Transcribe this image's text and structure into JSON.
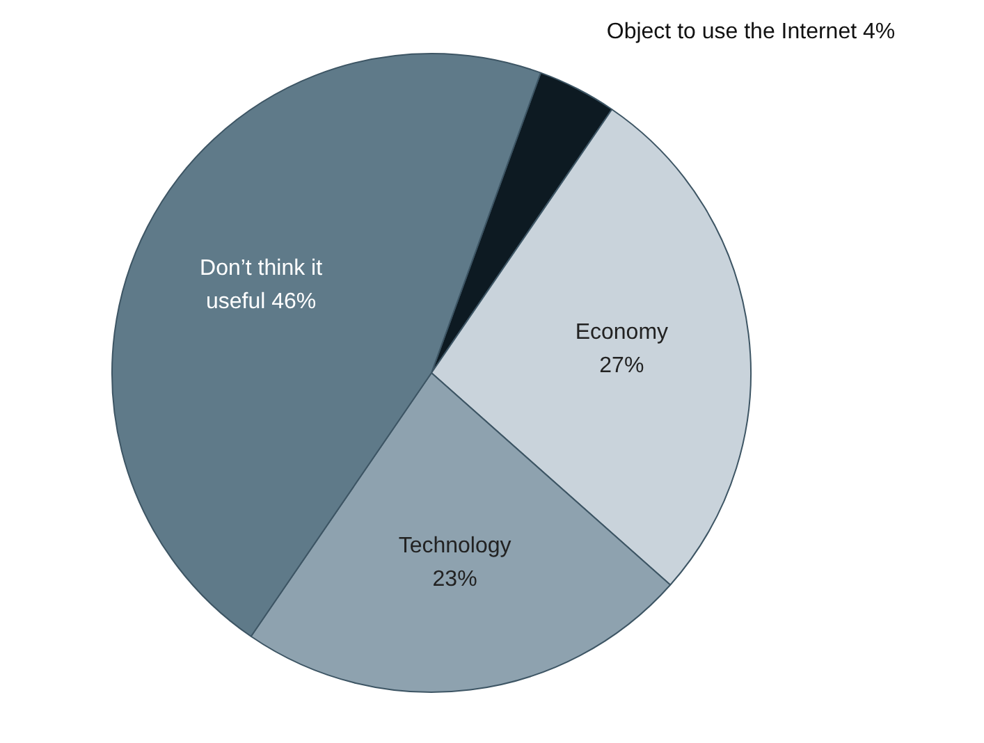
{
  "chart_data": {
    "type": "pie",
    "categories": [
      "Object to use the Internet",
      "Economy",
      "Technology",
      "Don’t think it useful"
    ],
    "values": [
      4,
      27,
      23,
      46
    ],
    "value_labels": [
      "4%",
      "27%",
      "23%",
      "46%"
    ],
    "colors": [
      "#0d1a22",
      "#c9d3db",
      "#8ea2af",
      "#5f7a89"
    ],
    "legend": false
  }
}
